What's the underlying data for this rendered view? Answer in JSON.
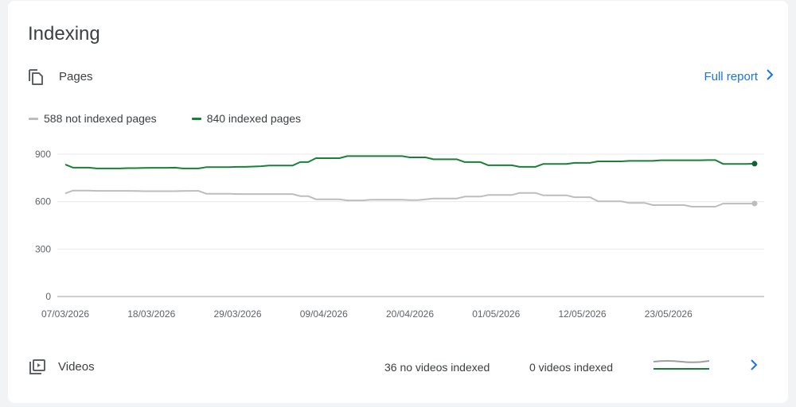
{
  "card": {
    "title": "Indexing"
  },
  "pages": {
    "label": "Pages",
    "full_report_label": "Full report"
  },
  "legend": {
    "not_indexed": "588 not indexed pages",
    "indexed": "840 indexed pages"
  },
  "colors": {
    "indexed": "#188038",
    "not_indexed": "#bdbdbd",
    "link": "#1a73e8",
    "grid": "#e8eaed"
  },
  "chart_data": {
    "type": "line",
    "xlabel": "",
    "ylabel": "",
    "ylim": [
      0,
      900
    ],
    "y_ticks": [
      0,
      300,
      600,
      900
    ],
    "x_tick_labels": [
      "07/03/2026",
      "18/03/2026",
      "29/03/2026",
      "09/04/2026",
      "20/04/2026",
      "01/05/2026",
      "12/05/2026",
      "23/05/2026"
    ],
    "grid": true,
    "legend_position": "top-left",
    "series": [
      {
        "name": "840 indexed pages",
        "color": "#188038",
        "values": [
          835,
          815,
          815,
          815,
          810,
          810,
          810,
          810,
          812,
          812,
          813,
          814,
          814,
          814,
          815,
          810,
          810,
          810,
          818,
          818,
          818,
          818,
          820,
          820,
          822,
          824,
          828,
          828,
          828,
          828,
          850,
          850,
          875,
          875,
          875,
          875,
          888,
          888,
          888,
          888,
          888,
          888,
          888,
          888,
          880,
          880,
          880,
          868,
          868,
          868,
          868,
          850,
          850,
          850,
          830,
          830,
          830,
          830,
          820,
          820,
          820,
          838,
          838,
          838,
          838,
          845,
          845,
          845,
          855,
          855,
          855,
          855,
          858,
          858,
          858,
          858,
          862,
          862,
          862,
          862,
          862,
          862,
          863,
          863,
          838,
          838,
          838,
          838,
          840
        ]
      },
      {
        "name": "588 not indexed pages",
        "color": "#bdbdbd",
        "values": [
          652,
          670,
          670,
          670,
          668,
          668,
          668,
          668,
          668,
          667,
          666,
          666,
          666,
          666,
          666,
          667,
          668,
          668,
          650,
          650,
          650,
          650,
          648,
          648,
          648,
          648,
          648,
          648,
          648,
          648,
          635,
          635,
          615,
          615,
          615,
          615,
          608,
          608,
          608,
          612,
          612,
          612,
          612,
          612,
          610,
          610,
          615,
          620,
          620,
          620,
          620,
          632,
          632,
          632,
          642,
          642,
          642,
          642,
          655,
          655,
          655,
          640,
          640,
          640,
          640,
          628,
          628,
          628,
          602,
          602,
          602,
          602,
          592,
          592,
          592,
          578,
          578,
          578,
          578,
          578,
          568,
          568,
          568,
          568,
          588,
          588,
          588,
          588,
          588
        ]
      }
    ]
  },
  "videos": {
    "label": "Videos",
    "no_videos_indexed": "36 no videos indexed",
    "videos_indexed": "0 videos indexed"
  }
}
